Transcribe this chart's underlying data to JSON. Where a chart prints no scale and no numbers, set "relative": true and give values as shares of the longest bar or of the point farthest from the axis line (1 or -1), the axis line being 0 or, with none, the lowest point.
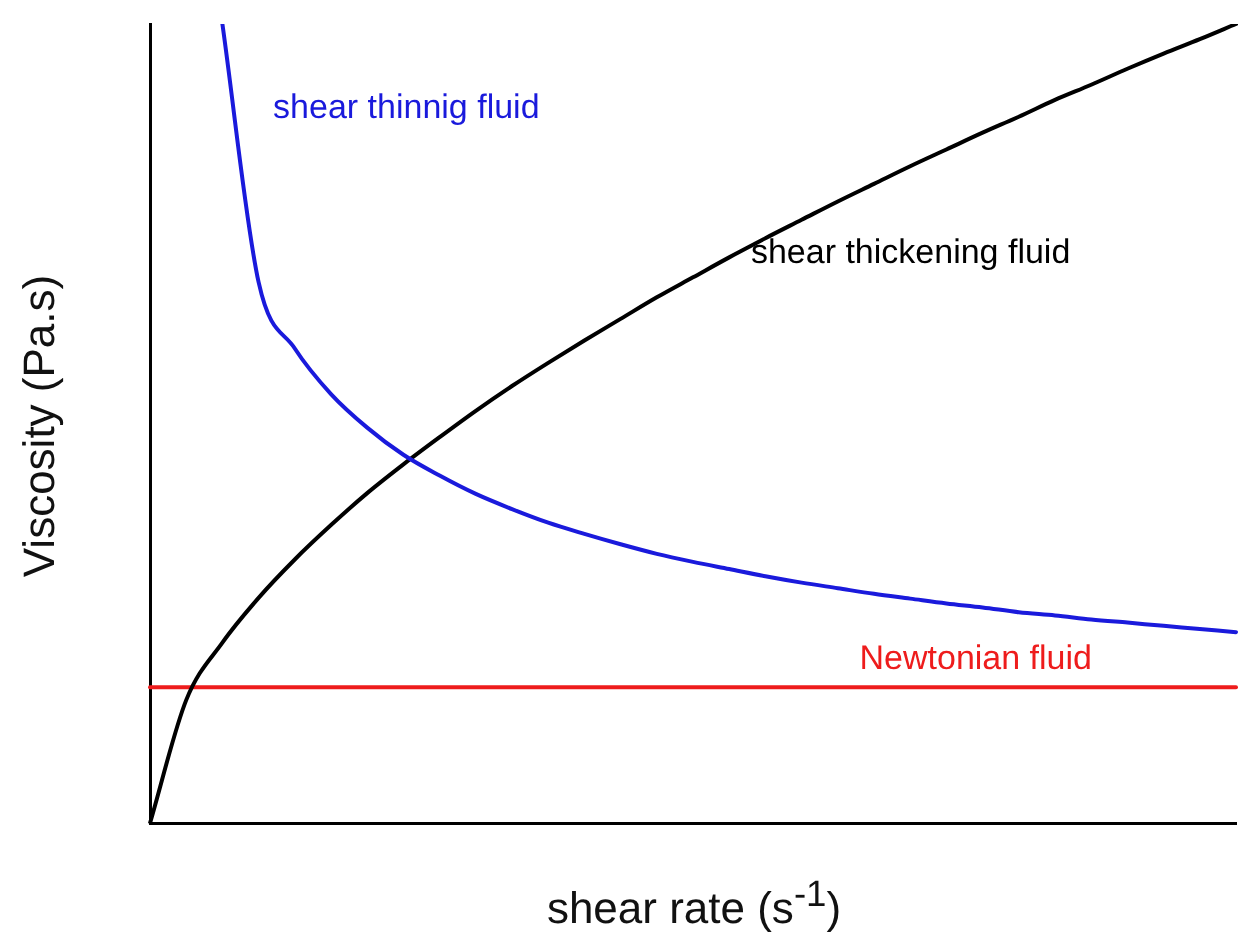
{
  "chart_data": {
    "type": "line",
    "relative": true,
    "xlabel": "shear rate (s$^{-1}$)",
    "ylabel": "Viscosity (Pa.s)",
    "legend": false,
    "grid": false,
    "marker": "none",
    "line_style": "solid",
    "categories": [
      null,
      null,
      null,
      null,
      null,
      null,
      null,
      null,
      null,
      null,
      null,
      null,
      null,
      null,
      null,
      null,
      null,
      null,
      null,
      null,
      null,
      null,
      null,
      null,
      null,
      null,
      null,
      null,
      null,
      null,
      null
    ],
    "series": [
      {
        "name": "shear thinnig fluid",
        "color": "#1a1adc",
        "values": [
          null,
          null,
          1,
          0.677,
          0.594,
          0.537,
          0.495,
          0.461,
          0.435,
          0.412,
          0.393,
          0.376,
          0.362,
          0.349,
          0.337,
          0.327,
          0.318,
          0.309,
          0.301,
          0.294,
          0.287,
          0.281,
          0.275,
          0.27,
          0.264,
          0.26,
          0.255,
          0.251,
          0.247,
          0.243,
          0.239
        ]
      },
      {
        "name": "shear thickening fluid",
        "color": "#000000",
        "values": [
          0,
          0.154,
          0.226,
          0.282,
          0.33,
          0.373,
          0.413,
          0.449,
          0.483,
          0.516,
          0.547,
          0.576,
          0.604,
          0.631,
          0.658,
          0.683,
          0.708,
          0.732,
          0.755,
          0.778,
          0.8,
          0.822,
          0.843,
          0.864,
          0.884,
          0.905,
          0.924,
          0.944,
          0.963,
          0.981,
          1
        ]
      },
      {
        "name": "Newtonian fluid",
        "color": "#ee1c1c",
        "values": [
          0.17,
          0.17,
          0.17,
          0.17,
          0.17,
          0.17,
          0.17,
          0.17,
          0.17,
          0.17,
          0.17,
          0.17,
          0.17,
          0.17,
          0.17,
          0.17,
          0.17,
          0.17,
          0.17,
          0.17,
          0.17,
          0.17,
          0.17,
          0.17,
          0.17,
          0.17,
          0.17,
          0.17,
          0.17,
          0.17,
          0.17
        ]
      }
    ]
  }
}
